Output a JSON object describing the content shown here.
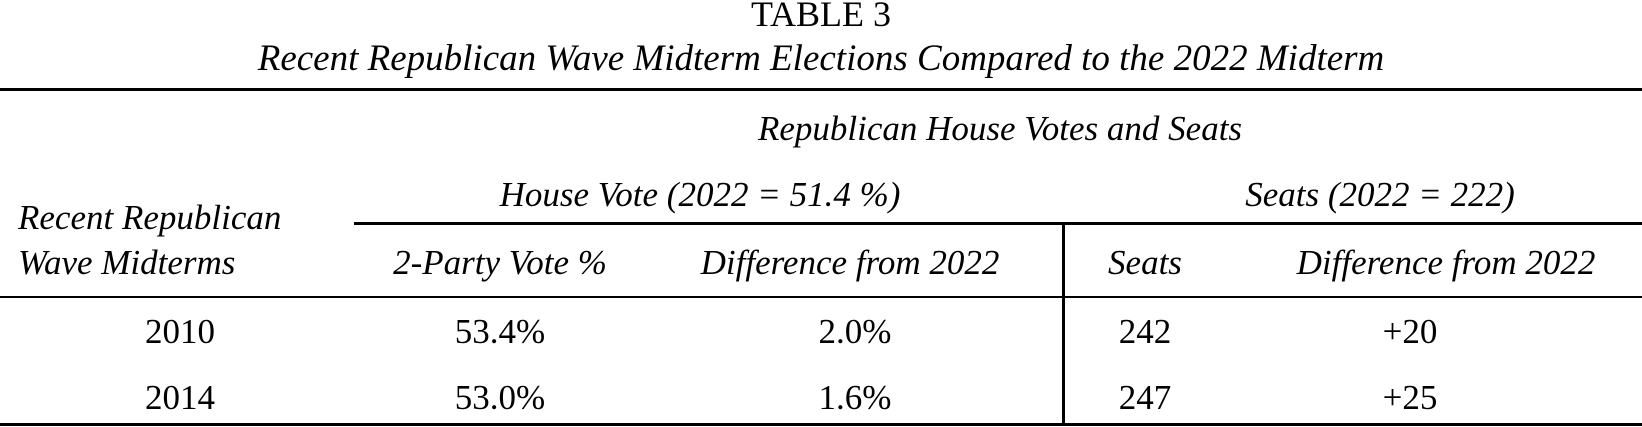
{
  "title": {
    "number": "TABLE 3",
    "caption": "Recent Republican Wave Midterm Elections Compared to the 2022 Midterm"
  },
  "header": {
    "super_group": "Republican House Votes and Seats",
    "row_label_line1": "Recent Republican",
    "row_label_line2": "Wave Midterms",
    "group_vote": "House Vote (2022 = 51.4 %)",
    "group_seats": "Seats (2022 = 222)",
    "col_vote_pct": "2-Party Vote %",
    "col_vote_diff": "Difference from 2022",
    "col_seats": "Seats",
    "col_seats_diff": "Difference from 2022"
  },
  "rows": [
    {
      "year": "2010",
      "vote_pct": "53.4%",
      "vote_diff": "2.0%",
      "seats": "242",
      "seats_diff": "+20"
    },
    {
      "year": "2014",
      "vote_pct": "53.0%",
      "vote_diff": "1.6%",
      "seats": "247",
      "seats_diff": "+25"
    }
  ]
}
